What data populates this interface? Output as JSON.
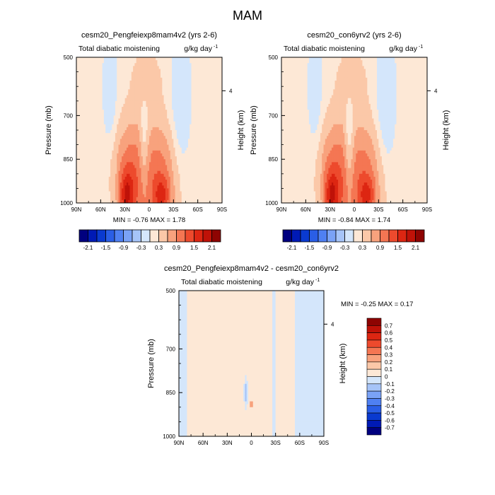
{
  "page": {
    "title": "MAM"
  },
  "scale": {
    "top_panels": {
      "bounds": [
        -2.4,
        -2.1,
        -1.8,
        -1.5,
        -1.2,
        -0.9,
        -0.6,
        -0.3,
        0,
        0.3,
        0.6,
        0.9,
        1.2,
        1.5,
        1.8,
        2.1,
        2.4
      ],
      "labels": [
        "-2.1",
        "-1.5",
        "-0.9",
        "-0.3",
        "0.3",
        "0.9",
        "1.5",
        "2.1"
      ],
      "colors": [
        "#00007f",
        "#001ab5",
        "#0a3ad0",
        "#2a5ee6",
        "#4f80f2",
        "#7aa2f6",
        "#a6c4f8",
        "#d4e6fb",
        "#fde8d6",
        "#fbc8a8",
        "#f8a27d",
        "#f47653",
        "#ed4a2d",
        "#dd2612",
        "#bf1208",
        "#8e0402"
      ]
    },
    "diff_panel": {
      "labels": [
        "0.7",
        "0.6",
        "0.5",
        "0.4",
        "0.3",
        "0.2",
        "0.1",
        "0",
        "-0.1",
        "-0.2",
        "-0.3",
        "-0.4",
        "-0.5",
        "-0.6",
        "-0.7"
      ],
      "colors": [
        "#8e0402",
        "#bf1208",
        "#dd2612",
        "#ed4a2d",
        "#f47653",
        "#f8a27d",
        "#fbc8a8",
        "#fde8d6",
        "#d4e6fb",
        "#a6c4f8",
        "#7aa2f6",
        "#4f80f2",
        "#2a5ee6",
        "#0a3ad0",
        "#001ab5",
        "#00007f"
      ]
    }
  },
  "chart_data": [
    {
      "type": "heatmap",
      "title": "cesm20_Pengfeiexp8mam4v2 (yrs 2-6)",
      "subtitle_left": "Total diabatic moistening",
      "units": "g/kg day",
      "units_exponent": "-1",
      "xlabel": "",
      "ylabel": "Pressure (mb)",
      "ylabel_right": "Height (km)",
      "x_ticks": [
        "90N",
        "60N",
        "30N",
        "0",
        "30S",
        "60S",
        "90S"
      ],
      "y_ticks": [
        "500",
        "700",
        "850",
        "1000"
      ],
      "right_ticks": [
        "4"
      ],
      "xlim": [
        90,
        -90
      ],
      "ylim": [
        1000,
        500
      ],
      "min_label": "MIN =",
      "min_value": "-0.76",
      "max_label": "MAX =",
      "max_value": "1.78",
      "fields": [
        {
          "lat": 48,
          "p": 620,
          "a": -0.4,
          "wlat": 5,
          "wp": 110
        },
        {
          "lat": -38,
          "p": 640,
          "a": -0.4,
          "wlat": 7,
          "wp": 140
        },
        {
          "lat": 25,
          "p": 920,
          "a": 0.9,
          "wlat": 14,
          "wp": 140
        },
        {
          "lat": 28,
          "p": 975,
          "a": 0.8,
          "wlat": 6,
          "wp": 55
        },
        {
          "lat": -14,
          "p": 930,
          "a": 0.8,
          "wlat": 14,
          "wp": 140
        },
        {
          "lat": -16,
          "p": 978,
          "a": 0.6,
          "wlat": 7,
          "wp": 45
        },
        {
          "lat": 6,
          "p": 800,
          "a": -0.5,
          "wlat": 4,
          "wp": 120
        },
        {
          "lat": 5,
          "p": 700,
          "a": 0.22,
          "wlat": 16,
          "wp": 260
        },
        {
          "lat": 2,
          "p": 580,
          "a": 0.22,
          "wlat": 12,
          "wp": 60
        }
      ]
    },
    {
      "type": "heatmap",
      "title": "cesm20_con6yrv2 (yrs 2-6)",
      "subtitle_left": "Total diabatic moistening",
      "units": "g/kg day",
      "units_exponent": "-1",
      "xlabel": "",
      "ylabel": "Pressure (mb)",
      "ylabel_right": "Height (km)",
      "x_ticks": [
        "90N",
        "60N",
        "30N",
        "0",
        "30S",
        "60S",
        "90S"
      ],
      "y_ticks": [
        "500",
        "700",
        "850",
        "1000"
      ],
      "right_ticks": [
        "4"
      ],
      "xlim": [
        90,
        -90
      ],
      "ylim": [
        1000,
        500
      ],
      "min_label": "MIN =",
      "min_value": "-0.84",
      "max_label": "MAX =",
      "max_value": "1.74",
      "fields": [
        {
          "lat": 48,
          "p": 620,
          "a": -0.4,
          "wlat": 5,
          "wp": 110
        },
        {
          "lat": -38,
          "p": 640,
          "a": -0.4,
          "wlat": 7,
          "wp": 140
        },
        {
          "lat": 25,
          "p": 920,
          "a": 0.9,
          "wlat": 14,
          "wp": 140
        },
        {
          "lat": 28,
          "p": 975,
          "a": 0.8,
          "wlat": 6,
          "wp": 55
        },
        {
          "lat": -14,
          "p": 930,
          "a": 0.8,
          "wlat": 14,
          "wp": 140
        },
        {
          "lat": -16,
          "p": 978,
          "a": 0.6,
          "wlat": 7,
          "wp": 45
        },
        {
          "lat": 6,
          "p": 800,
          "a": -0.55,
          "wlat": 4,
          "wp": 120
        },
        {
          "lat": 5,
          "p": 700,
          "a": 0.22,
          "wlat": 16,
          "wp": 260
        },
        {
          "lat": 2,
          "p": 580,
          "a": 0.22,
          "wlat": 12,
          "wp": 60
        }
      ]
    },
    {
      "type": "heatmap",
      "title": "cesm20_Pengfeiexp8mam4v2 - cesm20_con6yrv2",
      "subtitle_left": "Total diabatic moistening",
      "units": "g/kg day",
      "units_exponent": "-1",
      "xlabel": "",
      "ylabel": "Pressure (mb)",
      "ylabel_right": "Height (km)",
      "x_ticks": [
        "90N",
        "60N",
        "30N",
        "0",
        "30S",
        "60S",
        "90S"
      ],
      "y_ticks": [
        "500",
        "700",
        "850",
        "1000"
      ],
      "right_ticks": [
        "4"
      ],
      "xlim": [
        90,
        -90
      ],
      "ylim": [
        1000,
        500
      ],
      "min_label": "MIN =",
      "min_value": "-0.25",
      "max_label": "MAX =",
      "max_value": "0.17",
      "stripes": [
        {
          "lat": 72,
          "w": 8,
          "v": 0.05
        },
        {
          "lat": 55,
          "w": 5,
          "v": 0.03
        },
        {
          "lat": 38,
          "w": 9,
          "v": 0.05
        },
        {
          "lat": 22,
          "w": 6,
          "v": 0.04
        },
        {
          "lat": 12,
          "w": 5,
          "v": 0.05
        },
        {
          "lat": -2,
          "w": 7,
          "v": 0.05
        },
        {
          "lat": -20,
          "w": 6,
          "v": 0.04
        },
        {
          "lat": -35,
          "w": 5,
          "v": 0.03
        },
        {
          "lat": -48,
          "w": 6,
          "v": 0.05
        },
        {
          "lat": -72,
          "w": 5,
          "v": 0.03
        }
      ],
      "spots": [
        {
          "lat": 7,
          "p": 850,
          "v": -0.22,
          "wlat": 1.2,
          "wp": 30
        },
        {
          "lat": 0,
          "p": 890,
          "v": 0.17,
          "wlat": 0.9,
          "wp": 25
        }
      ]
    }
  ]
}
